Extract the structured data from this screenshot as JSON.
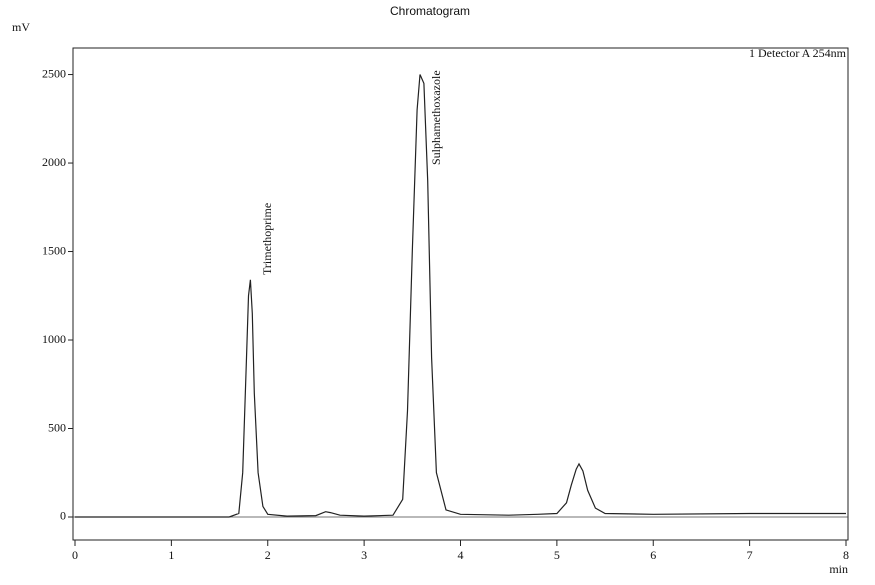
{
  "chart_data": {
    "type": "line",
    "title": "Chromatogram",
    "y_label": "mV",
    "x_label": "min",
    "legend": "1 Detector A 254nm",
    "annotations": [
      "Trimethoprime",
      "Sulphamethoxazole"
    ],
    "x": [
      0,
      1.6,
      1.7,
      1.74,
      1.78,
      1.8,
      1.82,
      1.84,
      1.86,
      1.9,
      1.95,
      2.0,
      2.2,
      2.5,
      2.6,
      2.65,
      2.75,
      3.0,
      3.3,
      3.4,
      3.45,
      3.5,
      3.55,
      3.58,
      3.62,
      3.66,
      3.7,
      3.75,
      3.85,
      4.0,
      4.5,
      4.8,
      5.0,
      5.1,
      5.15,
      5.2,
      5.23,
      5.27,
      5.32,
      5.4,
      5.5,
      6.0,
      7.0,
      8.0
    ],
    "series": [
      {
        "name": "Detector A",
        "color": "#222222",
        "values": [
          0,
          0,
          20,
          250,
          900,
          1250,
          1340,
          1150,
          700,
          250,
          60,
          15,
          5,
          8,
          30,
          25,
          10,
          5,
          10,
          100,
          600,
          1500,
          2300,
          2500,
          2450,
          1900,
          900,
          250,
          40,
          15,
          10,
          15,
          20,
          80,
          180,
          270,
          300,
          260,
          150,
          50,
          20,
          15,
          20,
          20
        ]
      }
    ],
    "xlim": [
      0,
      8
    ],
    "ylim": [
      -130,
      2650
    ],
    "xticks": [
      0,
      1,
      2,
      3,
      4,
      5,
      6,
      7,
      8
    ],
    "yticks": [
      0,
      500,
      1000,
      1500,
      2000,
      2500
    ]
  }
}
